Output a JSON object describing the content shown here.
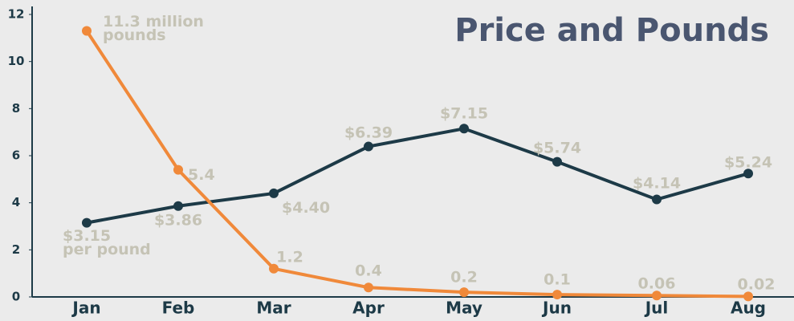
{
  "chart_data": {
    "type": "line",
    "title": "Price and Pounds",
    "categories": [
      "Jan",
      "Feb",
      "Mar",
      "Apr",
      "May",
      "Jun",
      "Jul",
      "Aug"
    ],
    "series": [
      {
        "color": "#1d3a47",
        "values": [
          3.15,
          3.86,
          4.4,
          6.39,
          7.15,
          5.74,
          4.14,
          5.24
        ],
        "value_labels": [
          "$3.15\nper pound",
          "$3.86",
          "$4.40",
          "$6.39",
          "$7.15",
          "$5.74",
          "$4.14",
          "$5.24"
        ]
      },
      {
        "color": "#f0893a",
        "values": [
          11.3,
          5.4,
          1.2,
          0.4,
          0.2,
          0.1,
          0.06,
          0.02
        ],
        "value_labels": [
          "11.3 million\npounds",
          "5.4",
          "1.2",
          "0.4",
          "0.2",
          "0.1",
          "0.06",
          "0.02"
        ]
      }
    ],
    "ylim": [
      0,
      12
    ],
    "yticks": [
      0,
      2,
      4,
      6,
      8,
      10,
      12
    ],
    "grid": false
  }
}
